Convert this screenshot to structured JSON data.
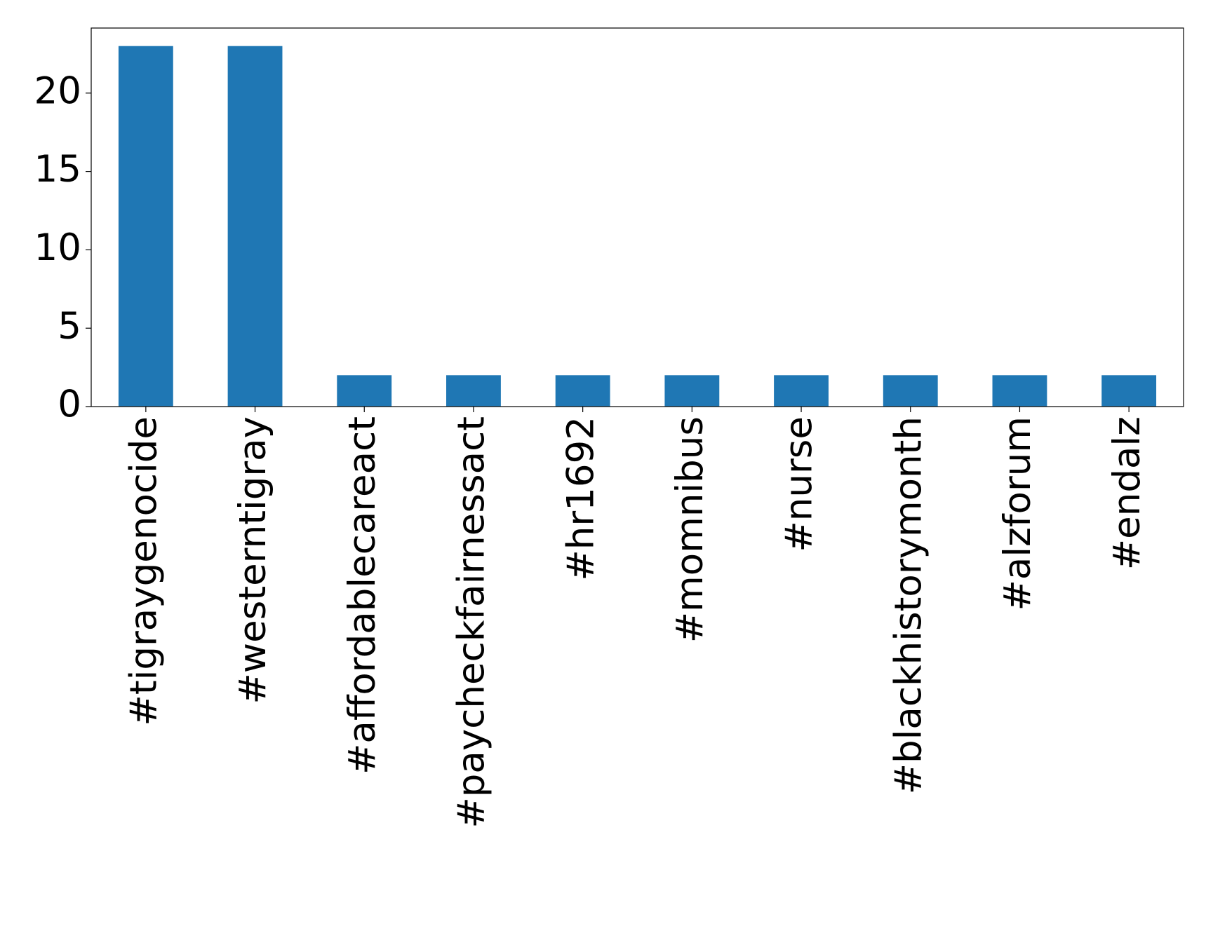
{
  "chart_data": {
    "type": "bar",
    "categories": [
      "#tigraygenocide",
      "#westerntigray",
      "#affordablecareact",
      "#paycheckfairnessact",
      "#hr1692",
      "#momnibus",
      "#nurse",
      "#blackhistorymonth",
      "#alzforum",
      "#endalz"
    ],
    "values": [
      23,
      23,
      2,
      2,
      2,
      2,
      2,
      2,
      2,
      2
    ],
    "color": "#1f77b4",
    "ylim": [
      0,
      24.15
    ],
    "yticks": [
      0,
      5,
      10,
      15,
      20
    ],
    "grid": false
  }
}
